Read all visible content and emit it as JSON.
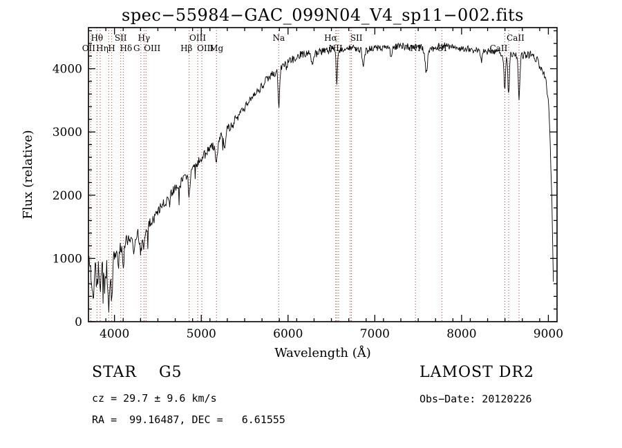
{
  "footer": {
    "class_label": "STAR    G5",
    "survey": "LAMOST DR2",
    "cz": "cz = 29.7 ± 9.6 km/s",
    "obs_date": "Obs−Date: 20120226",
    "radec": "RA =  99.16487, DEC =   6.61555"
  },
  "chart_data": {
    "type": "line",
    "title": "spec−55984−GAC_099N04_V4_sp11−002.fits",
    "xlabel": "Wavelength (Å)",
    "ylabel": "Flux (relative)",
    "xlim": [
      3700,
      9100
    ],
    "ylim": [
      0,
      4650
    ],
    "xticks": [
      4000,
      5000,
      6000,
      7000,
      8000,
      9000
    ],
    "yticks": [
      0,
      1000,
      2000,
      3000,
      4000
    ],
    "x_minor_step": 200,
    "y_minor_step": 200,
    "grid": false,
    "spectrum_color": "#000000",
    "feature_line_color": "#9e3a38",
    "label_color": "#000000",
    "spectral_lines": [
      {
        "label": "OII",
        "wavelength": 3727,
        "row": 2,
        "dx": -3
      },
      {
        "label": "Hθ",
        "wavelength": 3798,
        "row": 1,
        "dx": 0
      },
      {
        "label": "Hη",
        "wavelength": 3835,
        "row": 2,
        "dx": 3
      },
      {
        "label": "",
        "wavelength": 3933
      },
      {
        "label": "H",
        "wavelength": 3968,
        "row": 2,
        "dx": 0
      },
      {
        "label": "SII",
        "wavelength": 4072,
        "row": 1,
        "dx": 0
      },
      {
        "label": "Hδ",
        "wavelength": 4101,
        "row": 2,
        "dx": 4
      },
      {
        "label": "G",
        "wavelength": 4304,
        "row": 2,
        "dx": -6
      },
      {
        "label": "Hγ",
        "wavelength": 4340,
        "row": 1,
        "dx": 0
      },
      {
        "label": "OIII",
        "wavelength": 4363,
        "row": 2,
        "dx": 9
      },
      {
        "label": "Hβ",
        "wavelength": 4861,
        "row": 2,
        "dx": -4
      },
      {
        "label": "OIII",
        "wavelength": 4959,
        "row": 1,
        "dx": 0
      },
      {
        "label": "OIII",
        "wavelength": 5007,
        "row": 2,
        "dx": 5
      },
      {
        "label": "Mg",
        "wavelength": 5175,
        "row": 2,
        "dx": 0
      },
      {
        "label": "Na",
        "wavelength": 5893,
        "row": 1,
        "dx": 0
      },
      {
        "label": "NII",
        "wavelength": 6548,
        "row": 2,
        "dx": 0
      },
      {
        "label": "Hα",
        "wavelength": 6563,
        "row": 1,
        "dx": -9
      },
      {
        "label": "",
        "wavelength": 6583
      },
      {
        "label": "SII",
        "wavelength": 6716,
        "row": 1,
        "dx": 9
      },
      {
        "label": "",
        "wavelength": 6731
      },
      {
        "label": "NI",
        "wavelength": 7468,
        "row": 2,
        "dx": 0
      },
      {
        "label": "OI",
        "wavelength": 7774,
        "row": 2,
        "dx": 0
      },
      {
        "label": "CaII",
        "wavelength": 8498,
        "row": 2,
        "dx": -9
      },
      {
        "label": "CaII",
        "wavelength": 8542,
        "row": 1,
        "dx": 10
      },
      {
        "label": "",
        "wavelength": 8662
      }
    ],
    "continuum_points": [
      [
        3700,
        950
      ],
      [
        3760,
        880
      ],
      [
        3820,
        900
      ],
      [
        3880,
        880
      ],
      [
        3940,
        930
      ],
      [
        4000,
        1120
      ],
      [
        4100,
        1230
      ],
      [
        4200,
        1340
      ],
      [
        4300,
        1430
      ],
      [
        4400,
        1600
      ],
      [
        4500,
        1760
      ],
      [
        4600,
        1950
      ],
      [
        4700,
        2110
      ],
      [
        4800,
        2300
      ],
      [
        4900,
        2450
      ],
      [
        5000,
        2600
      ],
      [
        5100,
        2740
      ],
      [
        5200,
        2890
      ],
      [
        5300,
        3040
      ],
      [
        5400,
        3200
      ],
      [
        5500,
        3390
      ],
      [
        5600,
        3560
      ],
      [
        5700,
        3740
      ],
      [
        5800,
        3890
      ],
      [
        5900,
        4010
      ],
      [
        6000,
        4110
      ],
      [
        6100,
        4190
      ],
      [
        6200,
        4240
      ],
      [
        6300,
        4240
      ],
      [
        6400,
        4290
      ],
      [
        6500,
        4310
      ],
      [
        6600,
        4300
      ],
      [
        6700,
        4330
      ],
      [
        6800,
        4330
      ],
      [
        6900,
        4300
      ],
      [
        7000,
        4330
      ],
      [
        7100,
        4350
      ],
      [
        7200,
        4330
      ],
      [
        7300,
        4360
      ],
      [
        7400,
        4330
      ],
      [
        7500,
        4350
      ],
      [
        7600,
        4310
      ],
      [
        7700,
        4340
      ],
      [
        7800,
        4360
      ],
      [
        7900,
        4340
      ],
      [
        8000,
        4330
      ],
      [
        8100,
        4300
      ],
      [
        8200,
        4320
      ],
      [
        8300,
        4280
      ],
      [
        8400,
        4250
      ],
      [
        8500,
        4230
      ],
      [
        8600,
        4220
      ],
      [
        8700,
        4220
      ],
      [
        8800,
        4230
      ],
      [
        8860,
        4140
      ],
      [
        8920,
        4020
      ],
      [
        8970,
        3870
      ],
      [
        9010,
        3300
      ],
      [
        9040,
        1900
      ],
      [
        9060,
        520
      ]
    ],
    "absorption_features": [
      [
        3750,
        450,
        12
      ],
      [
        3798,
        300,
        9
      ],
      [
        3835,
        360,
        9
      ],
      [
        3889,
        320,
        9
      ],
      [
        3933,
        680,
        10
      ],
      [
        3968,
        680,
        10
      ],
      [
        4045,
        250,
        8
      ],
      [
        4101,
        320,
        9
      ],
      [
        4226,
        220,
        8
      ],
      [
        4304,
        300,
        15
      ],
      [
        4340,
        300,
        9
      ],
      [
        4383,
        200,
        8
      ],
      [
        4861,
        380,
        9
      ],
      [
        5175,
        300,
        13
      ],
      [
        5270,
        180,
        10
      ],
      [
        5893,
        620,
        9
      ],
      [
        6278,
        160,
        10
      ],
      [
        6563,
        520,
        8
      ],
      [
        6867,
        260,
        11
      ],
      [
        7186,
        130,
        10
      ],
      [
        7594,
        360,
        13
      ],
      [
        8227,
        160,
        9
      ],
      [
        8498,
        560,
        9
      ],
      [
        8542,
        660,
        9
      ],
      [
        8662,
        660,
        9
      ]
    ],
    "noise_profile": [
      [
        3700,
        200
      ],
      [
        3980,
        185
      ],
      [
        4100,
        110
      ],
      [
        4700,
        100
      ],
      [
        5500,
        85
      ],
      [
        6200,
        75
      ],
      [
        6600,
        68
      ],
      [
        8400,
        68
      ],
      [
        8700,
        80
      ],
      [
        9060,
        90
      ]
    ],
    "sample_step": 6,
    "seed": 11
  }
}
